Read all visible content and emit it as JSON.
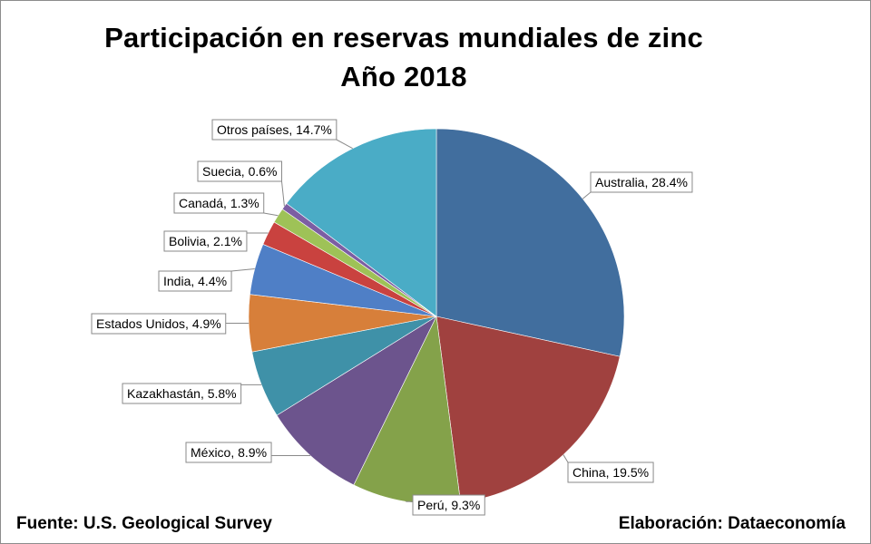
{
  "chart_data": {
    "type": "pie",
    "title": "Participación en reservas mundiales de zinc",
    "subtitle": "Año 2018",
    "categories": [
      "Australia",
      "China",
      "Perú",
      "México",
      "Kazakhastán",
      "Estados Unidos",
      "India",
      "Bolivia",
      "Canadá",
      "Suecia",
      "Otros países"
    ],
    "values": [
      28.4,
      19.5,
      9.3,
      8.9,
      5.8,
      4.9,
      4.4,
      2.1,
      1.3,
      0.6,
      14.7
    ],
    "unit": "%",
    "labels": [
      "Australia, 28.4%",
      "China, 19.5%",
      "Perú, 9.3%",
      "México, 8.9%",
      "Kazakhastán, 5.8%",
      "Estados Unidos, 4.9%",
      "India, 4.4%",
      "Bolivia, 2.1%",
      "Canadá, 1.3%",
      "Suecia, 0.6%",
      "Otros países, 14.7%"
    ],
    "colors": [
      "#416e9e",
      "#a0413f",
      "#84a24a",
      "#6c548d",
      "#3f91a8",
      "#d77f3a",
      "#4f7fc6",
      "#c9423f",
      "#9ec257",
      "#7c5ea3",
      "#4aacc6"
    ],
    "legend": "none",
    "start_angle": "12 o'clock, clockwise"
  },
  "footer": {
    "source": "Fuente: U.S. Geological Survey",
    "credit": "Elaboración: Dataeconomía"
  }
}
